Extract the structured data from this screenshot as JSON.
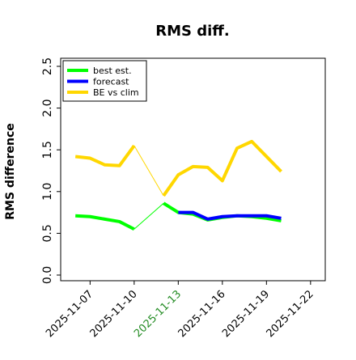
{
  "chart_data": {
    "type": "line",
    "title": "RMS diff.",
    "ylabel": "RMS difference",
    "xlabel": "",
    "ylim": [
      0,
      2.5
    ],
    "yticks": [
      0.0,
      0.5,
      1.0,
      1.5,
      2.0,
      2.5
    ],
    "ytick_labels": [
      "0.0",
      "0.5",
      "1.0",
      "1.5",
      "2.0",
      "2.5"
    ],
    "xticks": [
      "2025-11-07",
      "2025-11-10",
      "2025-11-13",
      "2025-11-16",
      "2025-11-19",
      "2025-11-22"
    ],
    "xlim": [
      "2025-11-05",
      "2025-11-23"
    ],
    "highlighted_xtick": "2025-11-13",
    "highlight_color": "#228b22",
    "grid": false,
    "legend_position": "top-left",
    "series": [
      {
        "name": "best est.",
        "color": "#00ff00",
        "segments": [
          [
            [
              "2025-11-06",
              0.71
            ],
            [
              "2025-11-07",
              0.7
            ],
            [
              "2025-11-08",
              0.67
            ],
            [
              "2025-11-09",
              0.64
            ],
            [
              "2025-11-10",
              0.55
            ]
          ],
          [
            [
              "2025-11-12",
              0.86
            ],
            [
              "2025-11-13",
              0.75
            ],
            [
              "2025-11-14",
              0.73
            ],
            [
              "2025-11-15",
              0.66
            ],
            [
              "2025-11-16",
              0.69
            ],
            [
              "2025-11-17",
              0.71
            ],
            [
              "2025-11-18",
              0.7
            ],
            [
              "2025-11-19",
              0.68
            ],
            [
              "2025-11-20",
              0.65
            ]
          ]
        ],
        "gap_connector": [
          [
            "2025-11-10",
            0.55
          ],
          [
            "2025-11-12",
            0.86
          ]
        ]
      },
      {
        "name": "forecast",
        "color": "#0000ff",
        "segments": [
          [
            [
              "2025-11-13",
              0.75
            ],
            [
              "2025-11-14",
              0.75
            ],
            [
              "2025-11-15",
              0.67
            ],
            [
              "2025-11-16",
              0.7
            ],
            [
              "2025-11-17",
              0.71
            ],
            [
              "2025-11-18",
              0.71
            ],
            [
              "2025-11-19",
              0.71
            ],
            [
              "2025-11-20",
              0.68
            ]
          ]
        ]
      },
      {
        "name": "BE vs clim",
        "color": "#ffd700",
        "segments": [
          [
            [
              "2025-11-06",
              1.42
            ],
            [
              "2025-11-07",
              1.4
            ],
            [
              "2025-11-08",
              1.32
            ],
            [
              "2025-11-09",
              1.31
            ],
            [
              "2025-11-10",
              1.55
            ]
          ],
          [
            [
              "2025-11-12",
              0.95
            ],
            [
              "2025-11-13",
              1.2
            ],
            [
              "2025-11-14",
              1.3
            ],
            [
              "2025-11-15",
              1.29
            ],
            [
              "2025-11-16",
              1.13
            ],
            [
              "2025-11-17",
              1.52
            ],
            [
              "2025-11-18",
              1.6
            ],
            [
              "2025-11-19",
              1.42
            ],
            [
              "2025-11-20",
              1.24
            ]
          ]
        ],
        "gap_connector": [
          [
            "2025-11-10",
            1.55
          ],
          [
            "2025-11-12",
            0.95
          ]
        ]
      }
    ]
  }
}
